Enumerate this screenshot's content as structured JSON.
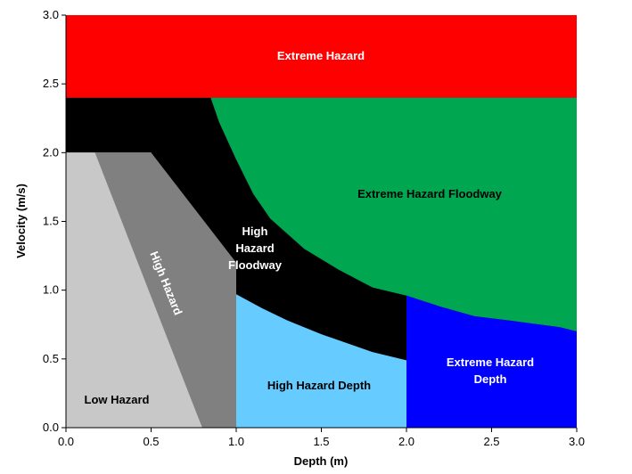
{
  "chart_data": {
    "type": "area",
    "title": "",
    "xlabel": "Depth (m)",
    "ylabel": "Velocity (m/s)",
    "xlim": [
      0.0,
      3.0
    ],
    "ylim": [
      0.0,
      3.0
    ],
    "xticks": [
      "0.0",
      "0.5",
      "1.0",
      "1.5",
      "2.0",
      "2.5",
      "3.0"
    ],
    "yticks": [
      "0.0",
      "0.5",
      "1.0",
      "1.5",
      "2.0",
      "2.5",
      "3.0"
    ],
    "grid": false,
    "legend": "none",
    "regions": [
      {
        "id": "extreme-hazard",
        "label": "Extreme Hazard",
        "color": "#ff0000",
        "label_color": "#ffffff",
        "polygon": [
          [
            0,
            2.4
          ],
          [
            3,
            2.4
          ],
          [
            3,
            3
          ],
          [
            0,
            3
          ]
        ]
      },
      {
        "id": "high-hazard-floodway",
        "label": "High Hazard Floodway",
        "color": "#000000",
        "label_color": "#ffffff",
        "polygon": [
          [
            0,
            2.0
          ],
          [
            0,
            2.4
          ],
          [
            3,
            2.4
          ],
          [
            3,
            0.0
          ],
          [
            0.8,
            0.0
          ],
          [
            0.5,
            2.0
          ]
        ]
      },
      {
        "id": "extreme-hazard-floodway",
        "label": "Extreme Hazard Floodway",
        "color": "#00a650",
        "label_color": "#000000",
        "polygon": [
          [
            0.85,
            2.4
          ],
          [
            3.0,
            2.4
          ],
          [
            3.0,
            0.7
          ],
          [
            2.9,
            0.73
          ],
          [
            2.6,
            0.78
          ],
          [
            2.4,
            0.81
          ],
          [
            2.2,
            0.88
          ],
          [
            2.0,
            0.96
          ],
          [
            1.8,
            1.02
          ],
          [
            1.6,
            1.15
          ],
          [
            1.4,
            1.3
          ],
          [
            1.2,
            1.52
          ],
          [
            1.1,
            1.7
          ],
          [
            1.0,
            1.95
          ],
          [
            0.9,
            2.22
          ]
        ]
      },
      {
        "id": "high-hazard-depth",
        "label": "High Hazard Depth",
        "color": "#66ccff",
        "label_color": "#000000",
        "polygon": [
          [
            1.0,
            0.0
          ],
          [
            2.0,
            0.0
          ],
          [
            2.0,
            0.49
          ],
          [
            1.9,
            0.52
          ],
          [
            1.8,
            0.55
          ],
          [
            1.5,
            0.68
          ],
          [
            1.3,
            0.78
          ],
          [
            1.15,
            0.87
          ],
          [
            1.0,
            0.97
          ]
        ]
      },
      {
        "id": "extreme-hazard-depth",
        "label": "Extreme Hazard Depth",
        "color": "#0000ff",
        "label_color": "#ffffff",
        "polygon": [
          [
            2.0,
            0.0
          ],
          [
            3.0,
            0.0
          ],
          [
            3.0,
            0.7
          ],
          [
            2.9,
            0.73
          ],
          [
            2.6,
            0.78
          ],
          [
            2.4,
            0.81
          ],
          [
            2.2,
            0.88
          ],
          [
            2.0,
            0.96
          ]
        ]
      },
      {
        "id": "high-hazard",
        "label": "High Hazard",
        "color": "#808080",
        "label_color": "#ffffff",
        "polygon": [
          [
            0.0,
            2.0
          ],
          [
            0.5,
            2.0
          ],
          [
            1.0,
            1.2
          ],
          [
            1.0,
            0.0
          ],
          [
            0.8,
            0.0
          ],
          [
            0.15,
            2.0
          ]
        ]
      },
      {
        "id": "low-hazard",
        "label": "Low Hazard",
        "color": "#c8c8c8",
        "label_color": "#000000",
        "polygon": [
          [
            0.0,
            0.0
          ],
          [
            0.8,
            0.0
          ],
          [
            0.17,
            2.0
          ],
          [
            0.0,
            2.0
          ]
        ]
      }
    ]
  }
}
